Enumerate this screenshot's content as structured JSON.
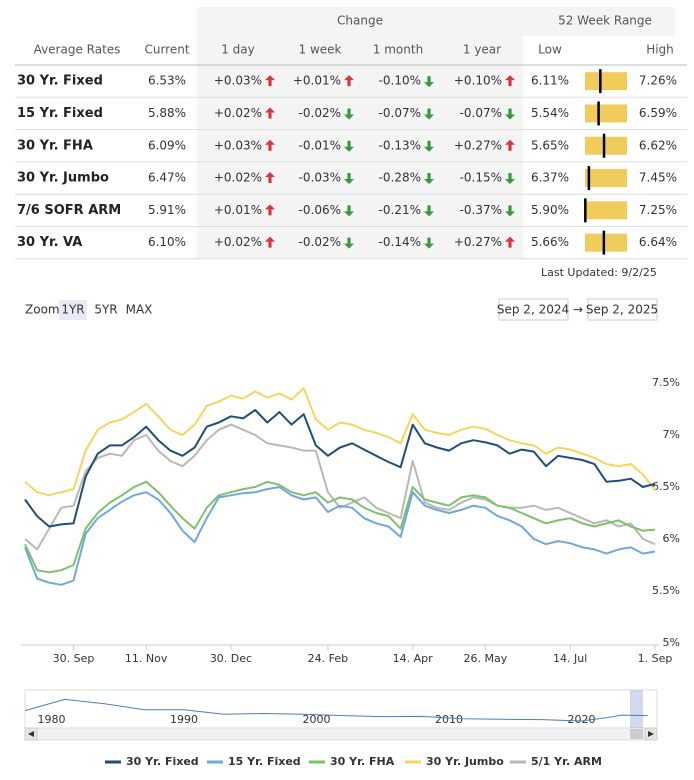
{
  "table": {
    "group_headers": {
      "change": "Change",
      "range": "52 Week Range"
    },
    "columns": [
      "Average Rates",
      "Current",
      "1 day",
      "1 week",
      "1 month",
      "1 year",
      "Low",
      "High"
    ],
    "rows": [
      [
        "30 Yr. Fixed",
        "6.53%",
        "+0.03%",
        "+0.01%",
        "-0.10%",
        "+0.10%",
        "6.11%",
        "7.26%"
      ],
      [
        "15 Yr. Fixed",
        "5.88%",
        "+0.02%",
        "-0.02%",
        "-0.07%",
        "-0.07%",
        "5.54%",
        "6.59%"
      ],
      [
        "30 Yr. FHA",
        "6.09%",
        "+0.03%",
        "-0.01%",
        "-0.13%",
        "+0.27%",
        "5.65%",
        "6.62%"
      ],
      [
        "30 Yr. Jumbo",
        "6.47%",
        "+0.02%",
        "-0.03%",
        "-0.28%",
        "-0.15%",
        "6.37%",
        "7.45%"
      ],
      [
        "7/6 SOFR ARM",
        "5.91%",
        "+0.01%",
        "-0.06%",
        "-0.21%",
        "-0.37%",
        "5.90%",
        "7.25%"
      ],
      [
        "30 Yr. VA",
        "6.10%",
        "+0.02%",
        "-0.02%",
        "-0.14%",
        "+0.27%",
        "5.66%",
        "6.64%"
      ]
    ],
    "last_updated": "Last Updated: 9/2/25"
  },
  "controls": {
    "zoom_label": "Zoom",
    "zoom_options": [
      "1YR",
      "5YR",
      "MAX"
    ],
    "selected": 0,
    "date_from": "Sep 2, 2024",
    "range_separator": "→",
    "date_to": "Sep 2, 2025"
  },
  "chart_data": {
    "type": "line",
    "categories": [
      null,
      null,
      null,
      null,
      "30. Sep",
      null,
      null,
      null,
      null,
      null,
      "11. Nov",
      null,
      null,
      null,
      null,
      null,
      null,
      "30. Dec",
      null,
      null,
      null,
      null,
      null,
      null,
      null,
      "24. Feb",
      null,
      null,
      null,
      null,
      null,
      null,
      "14. Apr",
      null,
      null,
      null,
      null,
      null,
      "26. May",
      null,
      null,
      null,
      null,
      null,
      null,
      "14. Jul",
      null,
      null,
      null,
      null,
      null,
      null,
      "1. Sep"
    ],
    "series": [
      {
        "name": "30 Yr. Fixed",
        "color": "#1f4e79",
        "values": [
          6.38,
          6.22,
          6.12,
          6.14,
          6.15,
          6.6,
          6.82,
          6.9,
          6.9,
          6.98,
          7.08,
          6.95,
          6.85,
          6.8,
          6.88,
          7.08,
          7.12,
          7.18,
          7.16,
          7.24,
          7.12,
          7.22,
          7.1,
          7.2,
          6.9,
          6.8,
          6.88,
          6.92,
          6.86,
          6.8,
          6.74,
          6.69,
          7.1,
          6.92,
          6.88,
          6.85,
          6.92,
          6.95,
          6.93,
          6.9,
          6.82,
          6.86,
          6.84,
          6.7,
          6.8,
          6.78,
          6.76,
          6.72,
          6.55,
          6.56,
          6.58,
          6.5,
          6.53
        ]
      },
      {
        "name": "15 Yr. Fixed",
        "color": "#6fa8dc",
        "values": [
          5.92,
          5.62,
          5.58,
          5.56,
          5.6,
          6.05,
          6.2,
          6.28,
          6.36,
          6.42,
          6.45,
          6.38,
          6.25,
          6.08,
          5.97,
          6.2,
          6.4,
          6.42,
          6.44,
          6.45,
          6.48,
          6.5,
          6.42,
          6.38,
          6.4,
          6.26,
          6.32,
          6.3,
          6.2,
          6.15,
          6.12,
          6.02,
          6.45,
          6.32,
          6.28,
          6.25,
          6.28,
          6.32,
          6.3,
          6.22,
          6.18,
          6.12,
          6.0,
          5.95,
          5.98,
          5.96,
          5.92,
          5.9,
          5.86,
          5.9,
          5.92,
          5.86,
          5.88
        ]
      },
      {
        "name": "30 Yr. FHA",
        "color": "#7dc26b",
        "values": [
          5.95,
          5.7,
          5.68,
          5.7,
          5.75,
          6.1,
          6.25,
          6.35,
          6.42,
          6.5,
          6.55,
          6.45,
          6.32,
          6.2,
          6.1,
          6.3,
          6.42,
          6.45,
          6.48,
          6.5,
          6.55,
          6.52,
          6.45,
          6.42,
          6.45,
          6.35,
          6.4,
          6.38,
          6.3,
          6.25,
          6.22,
          6.1,
          6.5,
          6.38,
          6.35,
          6.32,
          6.4,
          6.42,
          6.4,
          6.32,
          6.3,
          6.25,
          6.2,
          6.15,
          6.18,
          6.2,
          6.15,
          6.12,
          6.15,
          6.18,
          6.12,
          6.08,
          6.09
        ]
      },
      {
        "name": "30 Yr. Jumbo",
        "color": "#f6d55c",
        "values": [
          6.55,
          6.45,
          6.42,
          6.45,
          6.48,
          6.85,
          7.05,
          7.12,
          7.15,
          7.22,
          7.3,
          7.18,
          7.05,
          7.0,
          7.1,
          7.28,
          7.32,
          7.38,
          7.35,
          7.42,
          7.36,
          7.4,
          7.34,
          7.45,
          7.15,
          7.05,
          7.12,
          7.1,
          7.05,
          7.02,
          6.98,
          6.92,
          7.2,
          7.05,
          7.02,
          7.0,
          7.05,
          7.08,
          7.06,
          7.0,
          6.95,
          6.92,
          6.9,
          6.82,
          6.88,
          6.86,
          6.82,
          6.78,
          6.72,
          6.7,
          6.72,
          6.62,
          6.47
        ]
      },
      {
        "name": "5/1 Yr. ARM",
        "color": "#b8b8b8",
        "values": [
          6.0,
          5.9,
          6.1,
          6.3,
          6.32,
          6.65,
          6.78,
          6.82,
          6.8,
          6.95,
          7.0,
          6.85,
          6.75,
          6.7,
          6.8,
          6.95,
          7.05,
          7.1,
          7.05,
          7.0,
          6.92,
          6.9,
          6.88,
          6.85,
          6.85,
          6.45,
          6.3,
          6.35,
          6.4,
          6.3,
          6.25,
          6.2,
          6.75,
          6.35,
          6.3,
          6.28,
          6.35,
          6.4,
          6.38,
          6.32,
          6.3,
          6.3,
          6.32,
          6.28,
          6.3,
          6.25,
          6.2,
          6.15,
          6.18,
          6.12,
          6.15,
          6.0,
          5.95
        ]
      }
    ],
    "ylim": [
      5,
      7.9
    ],
    "yticks": [
      {
        "value": 5,
        "label": "5%"
      },
      {
        "value": 5.5,
        "label": "5.5%"
      },
      {
        "value": 6,
        "label": "6%"
      },
      {
        "value": 6.5,
        "label": "6.5%"
      },
      {
        "value": 7,
        "label": "7%"
      },
      {
        "value": 7.5,
        "label": "7.5%"
      }
    ],
    "grid": false,
    "legend": "bottom",
    "navigator": {
      "x": [
        1978,
        1981,
        1984,
        1987,
        1990,
        1993,
        1996,
        1999,
        2002,
        2005,
        2008,
        2011,
        2014,
        2017,
        2020,
        2022,
        2023,
        2025
      ],
      "values": [
        9.6,
        16.6,
        13.9,
        10.2,
        10.1,
        7.3,
        7.8,
        7.4,
        6.5,
        5.9,
        6.0,
        4.5,
        4.2,
        4.0,
        3.1,
        5.3,
        6.8,
        6.5
      ],
      "xlim": [
        1978,
        2025.7
      ],
      "ylim": [
        0,
        20
      ],
      "xticks": [
        1980,
        1990,
        2000,
        2010,
        2020
      ],
      "color": "#4a7fc0"
    }
  }
}
